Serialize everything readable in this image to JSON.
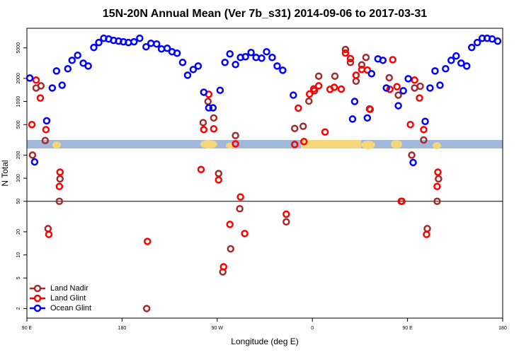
{
  "chart_data": {
    "type": "scatter",
    "title": "15N-20N Annual Mean (Ver 7b_s31)   2014-09-06 to 2017-03-31",
    "x_label": "Longitude (deg E)",
    "y_label": "N Total",
    "xlim": [
      90,
      540
    ],
    "ylim": [
      1.5,
      9000
    ],
    "log_y": true,
    "xticks": [
      {
        "value": 90,
        "label": "90 E"
      },
      180,
      {
        "value": 270,
        "label": "90 W"
      },
      {
        "value": 360,
        "label": "0"
      },
      {
        "value": 450,
        "label": "90 E"
      },
      {
        "value": 540,
        "label": "180"
      }
    ],
    "yticks": [
      2,
      5,
      10,
      20,
      50,
      100,
      200,
      500,
      1000,
      2000,
      5000
    ],
    "reference_line": 50,
    "legend": "bottom-left",
    "series": [
      {
        "name": "Land Nadir",
        "color": "#a52a2a",
        "x": [
          95.3,
          98.7,
          103.3,
          107.3,
          110,
          120.7,
          121.3,
          203.3,
          256.7,
          261.3,
          266.7,
          271.3,
          275.3,
          282.7,
          287.3,
          291.3,
          335.3,
          343.3,
          351.3,
          356.7,
          362,
          366,
          381.3,
          391.3,
          396,
          401.3,
          406.7,
          410.7,
          414,
          432.7,
          441.3,
          444.7,
          454,
          456.7,
          462,
          465.3,
          468.7,
          478,
          479.3
        ],
        "values": [
          200,
          1500,
          1600,
          310,
          22,
          50,
          98,
          2,
          530,
          1000,
          610,
          115,
          6,
          12,
          360,
          40,
          27,
          445,
          475,
          1010,
          1380,
          2140,
          2140,
          4760,
          3230,
          1840,
          3000,
          3750,
          800,
          2040,
          1210,
          50,
          200,
          1500,
          1580,
          315,
          22,
          50,
          98
        ]
      },
      {
        "name": "Land Glint",
        "color": "#ff0000",
        "x": [
          94.7,
          98.7,
          102.7,
          108,
          110.7,
          121.3,
          120.7,
          204,
          254.7,
          257.3,
          262,
          266.7,
          271.3,
          276,
          282,
          287.3,
          292,
          296,
          335.3,
          343.3,
          346.7,
          352,
          357.3,
          361.3,
          366,
          372,
          376.7,
          380.7,
          387.3,
          391.3,
          396,
          401.3,
          406.7,
          412,
          414.7,
          433.3,
          436,
          440,
          444,
          452.7,
          456.7,
          461.3,
          465.3,
          468,
          478.7,
          478
        ],
        "values": [
          500,
          1900,
          1110,
          430,
          18.5,
          120,
          78,
          15,
          130,
          430,
          1240,
          440,
          95,
          7,
          25,
          280,
          57,
          19,
          34,
          275,
          820,
          300,
          1250,
          1460,
          1600,
          400,
          1440,
          1530,
          1450,
          4280,
          3620,
          2200,
          2620,
          2570,
          790,
          1440,
          3500,
          1560,
          50,
          500,
          1900,
          1110,
          430,
          18.5,
          120,
          78
        ]
      },
      {
        "name": "Ocean Glint",
        "color": "#0000ff",
        "x": [
          92.7,
          97.3,
          108.7,
          114,
          118,
          123.3,
          128.7,
          132.7,
          138,
          143.3,
          148,
          153.3,
          158,
          162.7,
          167.3,
          172,
          176.7,
          181.3,
          186,
          191.3,
          196.7,
          202.7,
          207.3,
          212.7,
          217.3,
          222.7,
          227.3,
          232,
          237.3,
          242,
          247.3,
          252,
          257.3,
          262,
          266,
          272.7,
          277.3,
          282,
          287.3,
          292,
          296.7,
          302,
          306.7,
          312,
          316.7,
          322,
          326.7,
          332,
          342,
          398,
          400,
          412,
          416,
          422,
          426.7,
          430,
          441.3,
          446,
          450.7,
          455.3,
          466.7,
          471.3,
          476,
          480.7,
          486,
          491.3,
          496,
          500.7,
          506,
          510.7,
          516,
          520.7,
          525.3,
          530,
          535.3
        ],
        "values": [
          2020,
          163,
          560,
          1500,
          2500,
          1630,
          2670,
          3440,
          4000,
          3160,
          2900,
          5060,
          5870,
          6670,
          6530,
          6250,
          6120,
          6000,
          5870,
          6000,
          6670,
          5160,
          5740,
          5620,
          4840,
          4940,
          4450,
          4260,
          3230,
          2200,
          2610,
          2900,
          1320,
          826,
          826,
          1400,
          3230,
          4170,
          3030,
          3750,
          3830,
          4350,
          3750,
          3670,
          4450,
          3750,
          2900,
          2550,
          1210,
          590,
          1000,
          610,
          2300,
          3590,
          3440,
          1500,
          880,
          1380,
          1980,
          160,
          550,
          1500,
          2500,
          1630,
          2670,
          3440,
          3920,
          3160,
          2900,
          5060,
          5870,
          6670,
          6670,
          6530,
          6120
        ]
      }
    ]
  }
}
